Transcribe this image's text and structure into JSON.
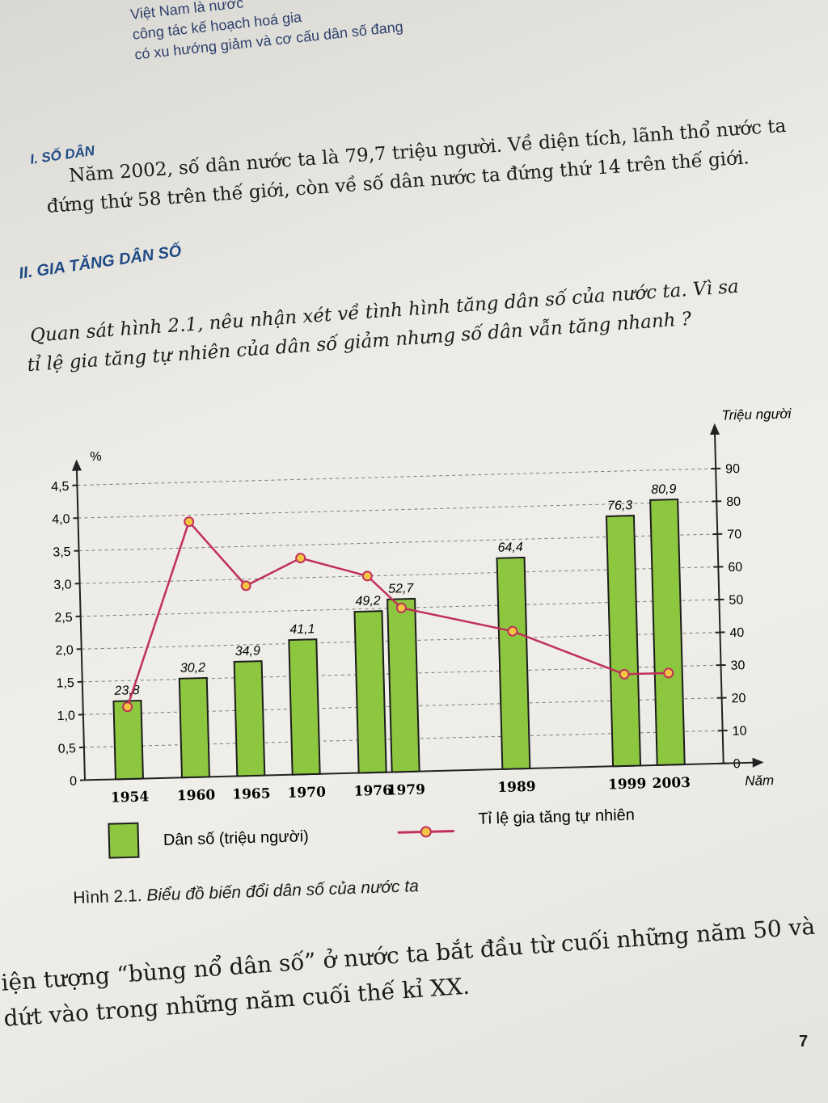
{
  "intro_lines": [
    "Việt Nam là nước",
    "công tác kế hoạch hoá gia",
    "có xu hướng giảm và cơ cấu dân số đang"
  ],
  "section1": {
    "heading": "I. SỐ DÂN",
    "lines": [
      "Năm 2002, số dân nước ta là 79,7 triệu người. Về diện tích, lãnh thổ nước ta",
      "đứng thứ 58 trên thế giới, còn về số dân nước ta đứng thứ 14 trên thế giới."
    ]
  },
  "section2": {
    "heading": "II. GIA TĂNG DÂN SỐ",
    "question_lines": [
      "Quan sát hình 2.1, nêu nhận xét về tình hình tăng dân số của nước ta. Vì sa",
      "tỉ lệ gia tăng tự nhiên của dân số giảm nhưng số dân vẫn tăng nhanh ?"
    ]
  },
  "chart_data": {
    "type": "bar",
    "categories": [
      "1954",
      "1960",
      "1965",
      "1970",
      "1976",
      "1979",
      "1989",
      "1999",
      "2003"
    ],
    "x_positions": [
      1954,
      1960,
      1965,
      1970,
      1976,
      1979,
      1989,
      1999,
      2003
    ],
    "series": [
      {
        "name": "Dân số (triệu người)",
        "type": "bar",
        "axis": "right",
        "values": [
          23.8,
          30.2,
          34.9,
          41.1,
          49.2,
          52.7,
          64.4,
          76.3,
          80.9
        ],
        "labels": [
          "23,8",
          "30,2",
          "34,9",
          "41,1",
          "49,2",
          "52,7",
          "64,4",
          "76,3",
          "80,9"
        ],
        "color": "#8dc63f"
      },
      {
        "name": "Tỉ lệ gia tăng tự nhiên",
        "type": "line",
        "axis": "left",
        "values": [
          1.1,
          3.9,
          2.9,
          3.3,
          3.0,
          2.5,
          2.1,
          1.4,
          1.4
        ],
        "color": "#c0305a"
      }
    ],
    "left_axis": {
      "label": "%",
      "range": [
        0,
        4.5
      ],
      "ticks": [
        "0",
        "0,5",
        "1,0",
        "1,5",
        "2,0",
        "2,5",
        "3,0",
        "3,5",
        "4,0",
        "4,5"
      ]
    },
    "right_axis": {
      "label": "Triệu người",
      "range": [
        0,
        90
      ],
      "ticks": [
        "0",
        "10",
        "20",
        "30",
        "40",
        "50",
        "60",
        "70",
        "80",
        "90"
      ]
    },
    "xlabel": "Năm",
    "grid": "dashed horizontal",
    "legend": {
      "position": "bottom",
      "bar_label": "Dân số (triệu người)",
      "line_label": "Tỉ lệ gia tăng tự nhiên"
    }
  },
  "caption": {
    "figure": "Hình 2.1.",
    "title": "Biểu đồ biến đổi dân số của nước ta"
  },
  "bottom_lines": [
    "iện tượng “bùng nổ dân số” ở nước ta bắt đầu từ cuối những năm 50 và",
    "dứt vào trong những năm cuối thế kỉ XX."
  ],
  "page_number": "7"
}
